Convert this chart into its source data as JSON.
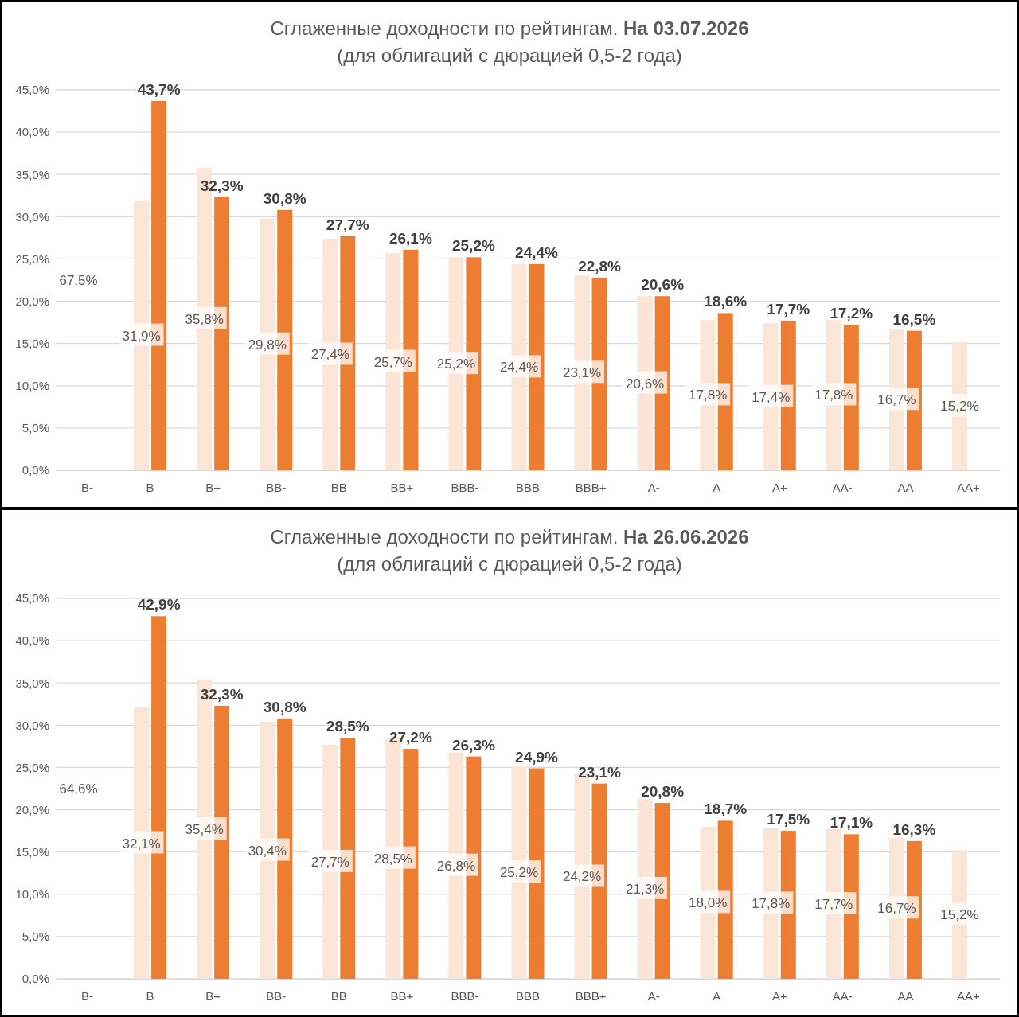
{
  "chart_data": [
    {
      "type": "bar",
      "title": "Сглаженные доходности по рейтингам. На 03.07.2026",
      "subtitle": "(для облигаций с дюрацией 0,5-2 года)",
      "categories": [
        "B-",
        "B",
        "B+",
        "BB-",
        "BB",
        "BB+",
        "BBB-",
        "BBB",
        "BBB+",
        "A-",
        "A",
        "A+",
        "AA-",
        "AA",
        "AA+"
      ],
      "series": [
        {
          "color": "#fbe5d6",
          "values": [
            null,
            31.9,
            35.8,
            29.8,
            27.4,
            25.7,
            25.2,
            24.4,
            23.1,
            20.6,
            17.8,
            17.4,
            17.8,
            16.7,
            15.2
          ],
          "value_labels": [
            "67,5%",
            "31,9%",
            "35,8%",
            "29,8%",
            "27,4%",
            "25,7%",
            "25,2%",
            "24,4%",
            "23,1%",
            "20,6%",
            "17,8%",
            "17,4%",
            "17,8%",
            "16,7%",
            "15,2%"
          ]
        },
        {
          "color": "#ed7d31",
          "values": [
            null,
            43.7,
            32.3,
            30.8,
            27.7,
            26.1,
            25.2,
            24.4,
            22.8,
            20.6,
            18.6,
            17.7,
            17.2,
            16.5,
            null
          ],
          "value_labels": [
            null,
            "43,7%",
            "32,3%",
            "30,8%",
            "27,7%",
            "26,1%",
            "25,2%",
            "24,4%",
            "22,8%",
            "20,6%",
            "18,6%",
            "17,7%",
            "17,2%",
            "16,5%",
            null
          ]
        }
      ],
      "ylim": [
        0,
        45
      ],
      "yticks": [
        {
          "value": 0,
          "label": "0,0%"
        },
        {
          "value": 5,
          "label": "5,0%"
        },
        {
          "value": 10,
          "label": "10,0%"
        },
        {
          "value": 15,
          "label": "15,0%"
        },
        {
          "value": 20,
          "label": "20,0%"
        },
        {
          "value": 25,
          "label": "25,0%"
        },
        {
          "value": 30,
          "label": "30,0%"
        },
        {
          "value": 35,
          "label": "35,0%"
        },
        {
          "value": 40,
          "label": "40,0%"
        },
        {
          "value": 45,
          "label": "45,0%"
        }
      ],
      "grid": "y"
    },
    {
      "type": "bar",
      "title": "Сглаженные доходности по рейтингам. На 26.06.2026",
      "subtitle": "(для облигаций с дюрацией 0,5-2 года)",
      "categories": [
        "B-",
        "B",
        "B+",
        "BB-",
        "BB",
        "BB+",
        "BBB-",
        "BBB",
        "BBB+",
        "A-",
        "A",
        "A+",
        "AA-",
        "AA",
        "AA+"
      ],
      "series": [
        {
          "color": "#fbe5d6",
          "values": [
            null,
            32.1,
            35.4,
            30.4,
            27.7,
            28.5,
            26.8,
            25.2,
            24.2,
            21.3,
            18.0,
            17.8,
            17.7,
            16.7,
            15.2
          ],
          "value_labels": [
            "64,6%",
            "32,1%",
            "35,4%",
            "30,4%",
            "27,7%",
            "28,5%",
            "26,8%",
            "25,2%",
            "24,2%",
            "21,3%",
            "18,0%",
            "17,8%",
            "17,7%",
            "16,7%",
            "15,2%"
          ]
        },
        {
          "color": "#ed7d31",
          "values": [
            null,
            42.9,
            32.3,
            30.8,
            28.5,
            27.2,
            26.3,
            24.9,
            23.1,
            20.8,
            18.7,
            17.5,
            17.1,
            16.3,
            null
          ],
          "value_labels": [
            null,
            "42,9%",
            "32,3%",
            "30,8%",
            "28,5%",
            "27,2%",
            "26,3%",
            "24,9%",
            "23,1%",
            "20,8%",
            "18,7%",
            "17,5%",
            "17,1%",
            "16,3%",
            null
          ]
        }
      ],
      "ylim": [
        0,
        45
      ],
      "yticks": [
        {
          "value": 0,
          "label": "0,0%"
        },
        {
          "value": 5,
          "label": "5,0%"
        },
        {
          "value": 10,
          "label": "10,0%"
        },
        {
          "value": 15,
          "label": "15,0%"
        },
        {
          "value": 20,
          "label": "20,0%"
        },
        {
          "value": 25,
          "label": "25,0%"
        },
        {
          "value": 30,
          "label": "30,0%"
        },
        {
          "value": 35,
          "label": "35,0%"
        },
        {
          "value": 40,
          "label": "40,0%"
        },
        {
          "value": 45,
          "label": "45,0%"
        }
      ],
      "grid": "y"
    }
  ]
}
